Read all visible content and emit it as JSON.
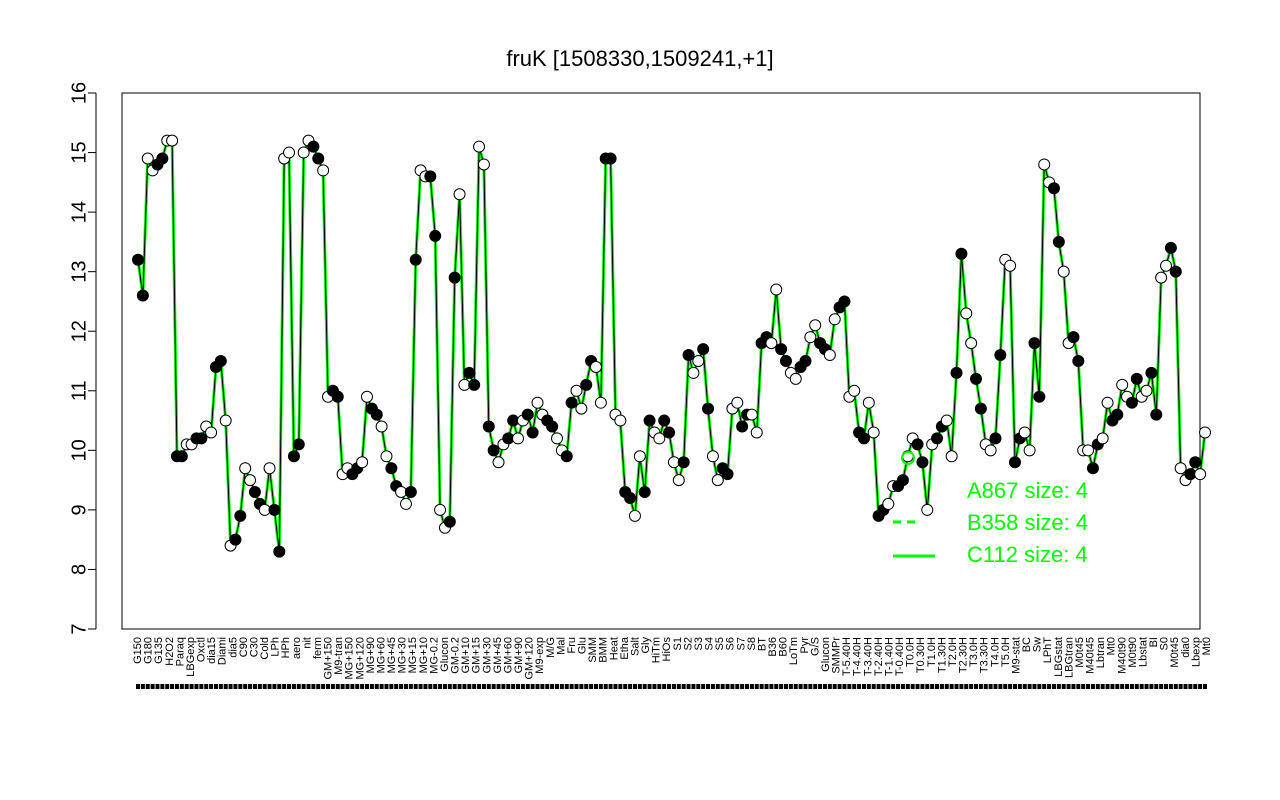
{
  "chart_data": {
    "type": "line",
    "title": "fruK [1508330,1509241,+1]",
    "xlabel": "",
    "ylabel": "",
    "ylim": [
      7,
      16
    ],
    "yticks": [
      7,
      8,
      9,
      10,
      11,
      12,
      13,
      14,
      15,
      16
    ],
    "grid": false,
    "legend_position": "bottom-right",
    "legend": [
      {
        "label": "A867 size: 4",
        "style": "points"
      },
      {
        "label": "B358 size: 4",
        "style": "dashed"
      },
      {
        "label": "C112 size: 4",
        "style": "solid"
      }
    ],
    "colors": {
      "line": "#00ff00",
      "points_filled": "#000000",
      "points_open": "#ffffff",
      "text": "#000000",
      "legend": "#00ff00"
    },
    "x_tick_labels": [
      "G150",
      "G180",
      "G135",
      "H2O2",
      "Paraq",
      "LBGexp",
      "Oxctl",
      "dia15",
      "Diami",
      "dia5",
      "C90",
      "C30",
      "Cold",
      "LPh",
      "HPh",
      "aero",
      "nit",
      "ferm",
      "GM+150",
      "M9-tran",
      "MG+150",
      "MG+120",
      "MG+90",
      "MG+60",
      "MG+45",
      "MG+30",
      "MG+15",
      "MG+10",
      "MG-0.2",
      "Glucon",
      "GM-0.2",
      "GM+10",
      "GM+15",
      "GM+30",
      "GM+45",
      "GM+60",
      "GM+90",
      "GM+120",
      "M9-exp",
      "M/G",
      "Mal",
      "Fru",
      "Glu",
      "SMM",
      "BMM",
      "Heat",
      "Etha",
      "Salt",
      "Gly",
      "HiTm",
      "HiOs",
      "S1",
      "S2",
      "S3",
      "S4",
      "S5",
      "S6",
      "S7",
      "S8",
      "BT",
      "B36",
      "B60",
      "LoTm",
      "Pyr",
      "G/S",
      "Glucon",
      "SMMPr",
      "T-5.40H",
      "T-4.40H",
      "T-3.40H",
      "T-2.40H",
      "T-1.40H",
      "T-0.40H",
      "T0.0H",
      "T0.30H",
      "T1.0H",
      "T1.30H",
      "T2.0H",
      "T2.30H",
      "T3.0H",
      "T3.30H",
      "T4.0H",
      "T5.0H",
      "M9-stat",
      "BC",
      "Sw",
      "LPhT",
      "LBGstat",
      "LBGtran",
      "M0t45",
      "M40t45",
      "Lbtran",
      "Mt0",
      "M40t90",
      "M0t90",
      "Lbstat",
      "BI",
      "S0",
      "M0t45",
      "dia0",
      "Lbexp",
      "Mt0"
    ],
    "series": [
      {
        "values": [
          13.2,
          12.6,
          14.9,
          14.7,
          14.8,
          14.9,
          15.2,
          15.2,
          9.9,
          9.9,
          10.1,
          10.1,
          10.2,
          10.2,
          10.4,
          10.3,
          11.4,
          11.5,
          10.5,
          8.4,
          8.5,
          8.9,
          9.7,
          9.5,
          9.3,
          9.1,
          9.0,
          9.7,
          9.0,
          8.3,
          14.9,
          15.0,
          9.9,
          10.1,
          15.0,
          15.2,
          15.1,
          14.9,
          14.7,
          10.9,
          11.0,
          10.9,
          9.6,
          9.7,
          9.6,
          9.7,
          9.8,
          10.9,
          10.7,
          10.6,
          10.4,
          9.9,
          9.7,
          9.4,
          9.3,
          9.1,
          9.3,
          13.2,
          14.7,
          14.6,
          14.6,
          13.6,
          9.0,
          8.7,
          8.8,
          12.9,
          14.3,
          11.1,
          11.3,
          11.1,
          15.1,
          14.8,
          10.4,
          10.0,
          9.8,
          10.1,
          10.2,
          10.5,
          10.2,
          10.5,
          10.6,
          10.3,
          10.8,
          10.6,
          10.5,
          10.4,
          10.2,
          10.0,
          9.9,
          10.8,
          11.0,
          10.7,
          11.1,
          11.5,
          11.4,
          10.8,
          14.9,
          14.9,
          10.6,
          10.5,
          9.3,
          9.2,
          8.9,
          9.9,
          9.3,
          10.5,
          10.3,
          10.2,
          10.5,
          10.3,
          9.8,
          9.5,
          9.8,
          11.6,
          11.3,
          11.5,
          11.7,
          10.7,
          9.9,
          9.5,
          9.7,
          9.6,
          10.7,
          10.8,
          10.4,
          10.6,
          10.6,
          10.3,
          11.8,
          11.9,
          11.8,
          12.7,
          11.7,
          11.5,
          11.3,
          11.2,
          11.4,
          11.5,
          11.9,
          12.1,
          11.8,
          11.7,
          11.6,
          12.2,
          12.4,
          12.5,
          10.9,
          11.0,
          10.3,
          10.2,
          10.8,
          10.3,
          8.9,
          9.0,
          9.1,
          9.4,
          9.4,
          9.5,
          9.9,
          10.2,
          10.1,
          9.8,
          9.0,
          10.1,
          10.2,
          10.4,
          10.5,
          9.9,
          11.3,
          13.3,
          12.3,
          11.8,
          11.2,
          10.7,
          10.1,
          10.0,
          10.2,
          11.6,
          13.2,
          13.1,
          9.8,
          10.2,
          10.3,
          10.0,
          11.8,
          10.9,
          14.8,
          14.5,
          14.4,
          13.5,
          13.0,
          11.8,
          11.9,
          11.5,
          10.0,
          10.0,
          9.7,
          10.1,
          10.2,
          10.8,
          10.5,
          10.6,
          11.1,
          10.9,
          10.8,
          11.2,
          10.9,
          11.0,
          11.3,
          10.6,
          12.9,
          13.1,
          13.4,
          13.0,
          9.7,
          9.5,
          9.6,
          9.8,
          9.6,
          10.3
        ]
      }
    ]
  }
}
